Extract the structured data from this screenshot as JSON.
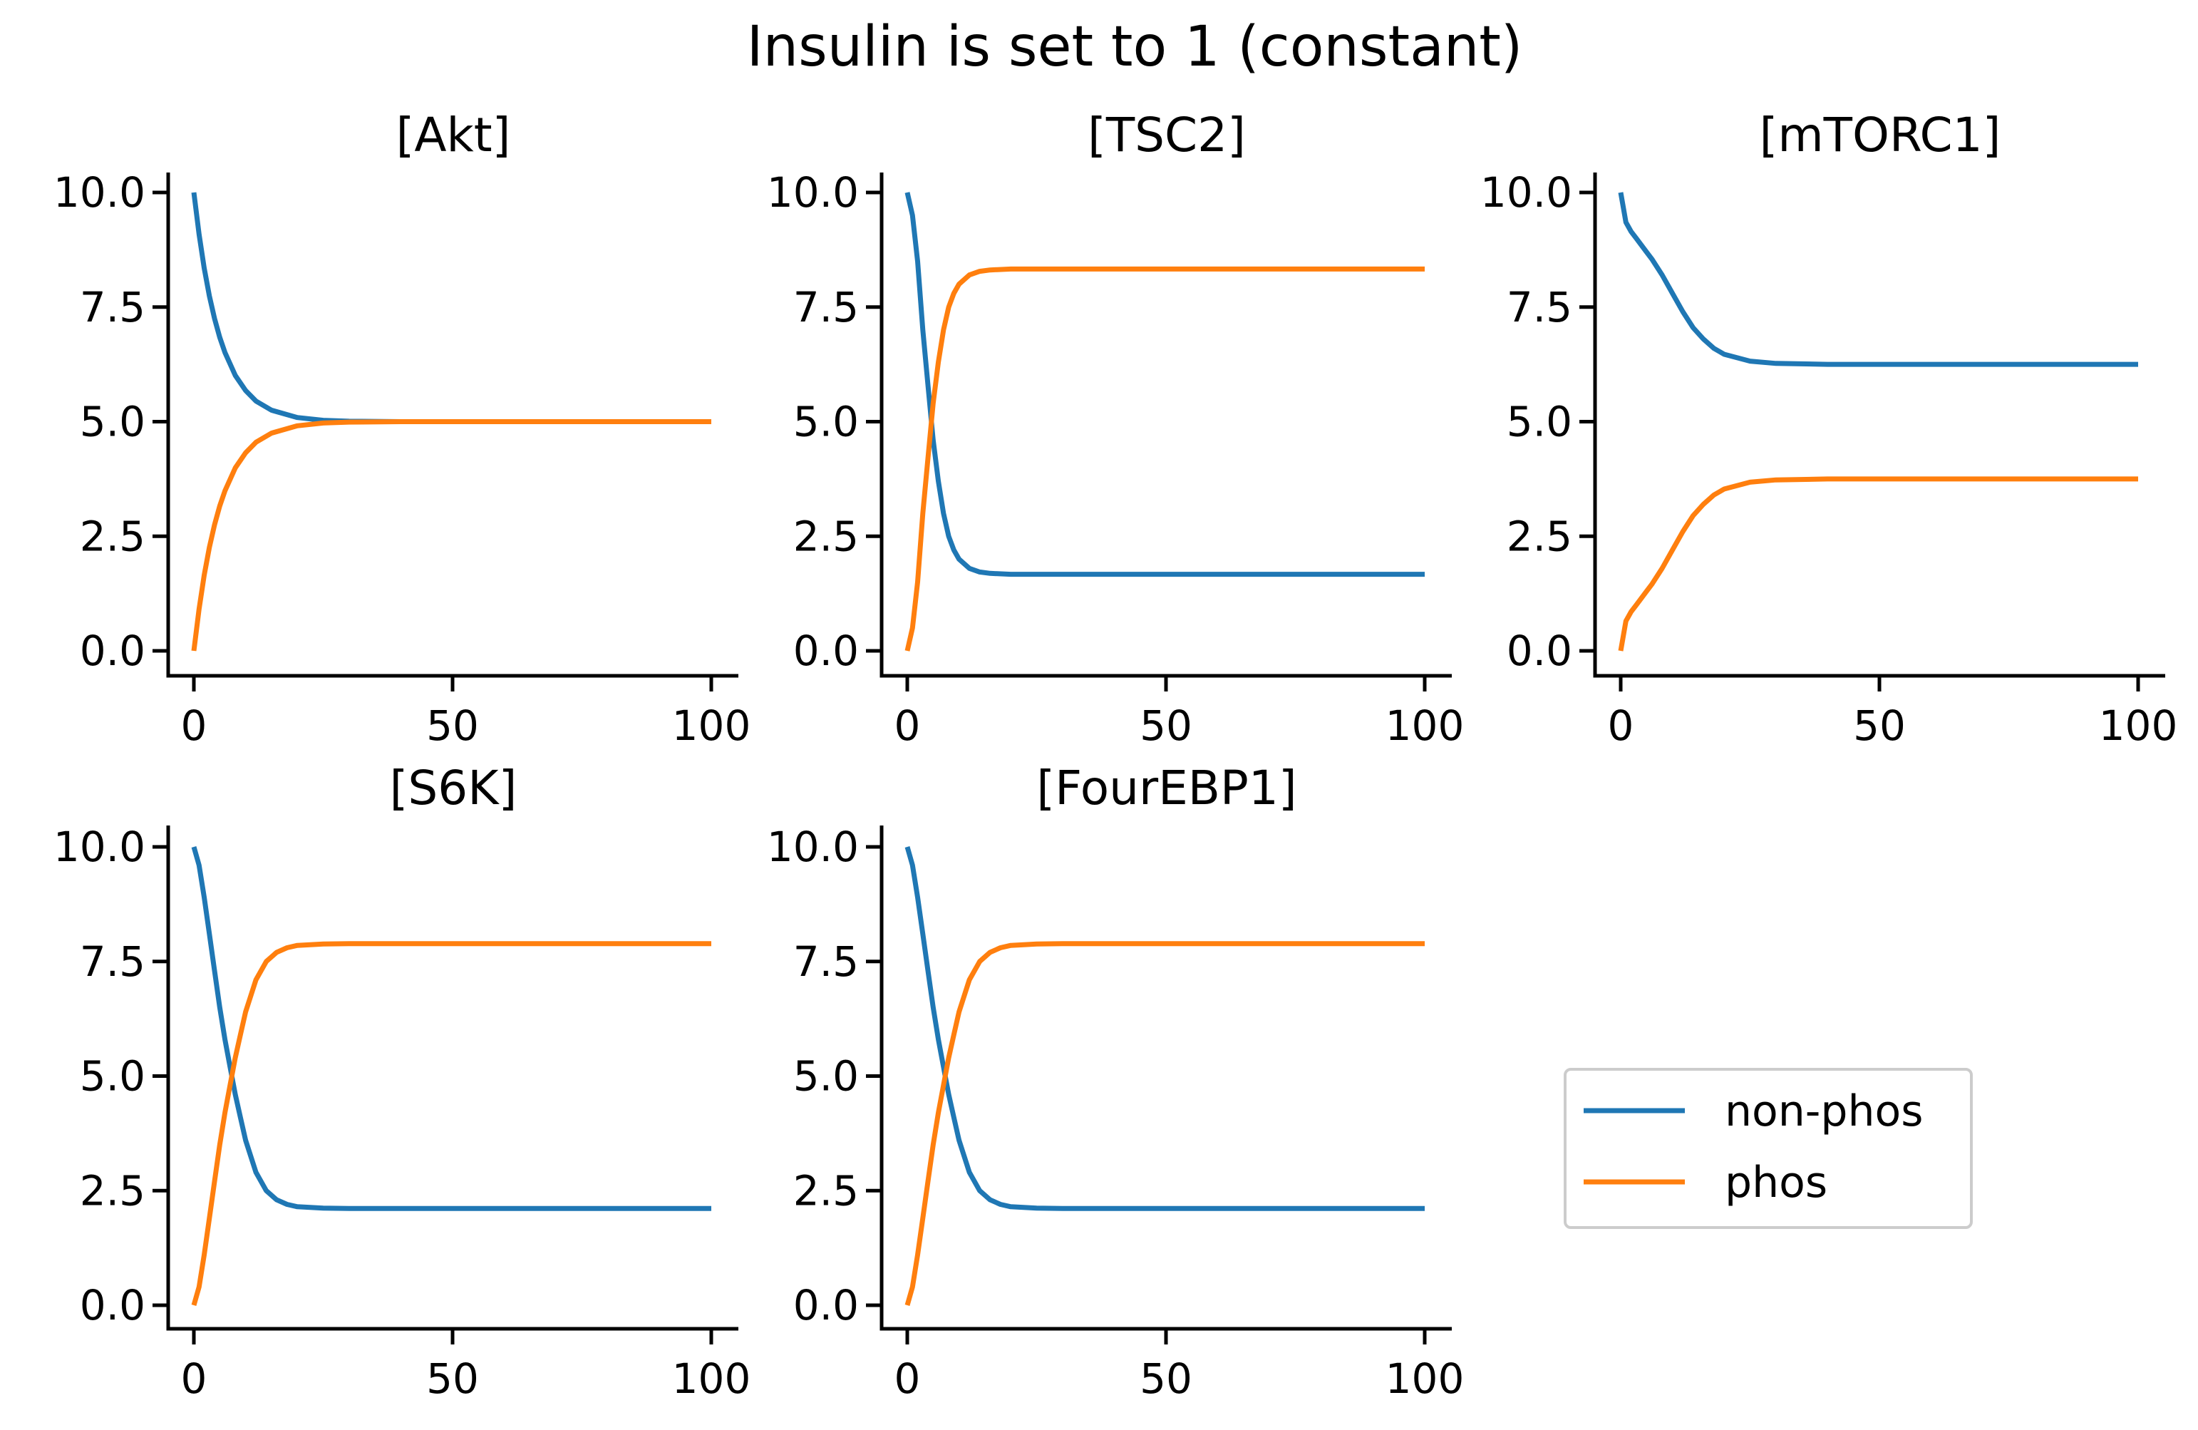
{
  "figure": {
    "title": "Insulin is set to 1 (constant)"
  },
  "legend": {
    "placement": "lower-right",
    "entries": [
      {
        "label": "non-phos",
        "color": "#1f77b4"
      },
      {
        "label": "phos",
        "color": "#ff7f0e"
      }
    ]
  },
  "chart_data": [
    {
      "type": "line",
      "title": "[Akt]",
      "xlim": [
        0,
        100
      ],
      "ylim": [
        0,
        10
      ],
      "xticks": [
        "0",
        "50",
        "100"
      ],
      "yticks": [
        "0.0",
        "2.5",
        "5.0",
        "7.5",
        "10.0"
      ],
      "x": [
        0,
        1,
        2,
        3,
        4,
        5,
        6,
        8,
        10,
        12,
        15,
        20,
        25,
        30,
        40,
        50,
        60,
        70,
        80,
        90,
        100
      ],
      "series": [
        {
          "name": "non-phos",
          "color": "#1f77b4",
          "values": [
            10.0,
            9.09,
            8.35,
            7.74,
            7.25,
            6.84,
            6.51,
            6.01,
            5.68,
            5.45,
            5.25,
            5.09,
            5.03,
            5.01,
            5.0,
            5.0,
            5.0,
            5.0,
            5.0,
            5.0,
            5.0
          ]
        },
        {
          "name": "phos",
          "color": "#ff7f0e",
          "values": [
            0.0,
            0.91,
            1.65,
            2.26,
            2.75,
            3.16,
            3.49,
            3.99,
            4.32,
            4.55,
            4.75,
            4.91,
            4.97,
            4.99,
            5.0,
            5.0,
            5.0,
            5.0,
            5.0,
            5.0,
            5.0
          ]
        }
      ]
    },
    {
      "type": "line",
      "title": "[TSC2]",
      "xlim": [
        0,
        100
      ],
      "ylim": [
        0,
        10
      ],
      "xticks": [
        "0",
        "50",
        "100"
      ],
      "yticks": [
        "0.0",
        "2.5",
        "5.0",
        "7.5",
        "10.0"
      ],
      "x": [
        0,
        1,
        2,
        3,
        4,
        5,
        6,
        7,
        8,
        9,
        10,
        12,
        14,
        16,
        20,
        25,
        30,
        40,
        50,
        60,
        70,
        80,
        90,
        100
      ],
      "series": [
        {
          "name": "non-phos",
          "color": "#1f77b4",
          "values": [
            10.0,
            9.5,
            8.5,
            7.0,
            5.8,
            4.6,
            3.7,
            3.0,
            2.5,
            2.2,
            2.0,
            1.8,
            1.72,
            1.69,
            1.67,
            1.67,
            1.67,
            1.67,
            1.67,
            1.67,
            1.67,
            1.67,
            1.67,
            1.67
          ]
        },
        {
          "name": "phos",
          "color": "#ff7f0e",
          "values": [
            0.0,
            0.5,
            1.5,
            3.0,
            4.2,
            5.4,
            6.3,
            7.0,
            7.5,
            7.8,
            8.0,
            8.2,
            8.28,
            8.31,
            8.33,
            8.33,
            8.33,
            8.33,
            8.33,
            8.33,
            8.33,
            8.33,
            8.33,
            8.33
          ]
        }
      ]
    },
    {
      "type": "line",
      "title": "[mTORC1]",
      "xlim": [
        0,
        100
      ],
      "ylim": [
        0,
        10
      ],
      "xticks": [
        "0",
        "50",
        "100"
      ],
      "yticks": [
        "0.0",
        "2.5",
        "5.0",
        "7.5",
        "10.0"
      ],
      "x": [
        0,
        1,
        2,
        3,
        4,
        5,
        6,
        8,
        10,
        12,
        14,
        16,
        18,
        20,
        25,
        30,
        40,
        50,
        60,
        70,
        80,
        90,
        100
      ],
      "series": [
        {
          "name": "non-phos",
          "color": "#1f77b4",
          "values": [
            10.0,
            9.35,
            9.15,
            9.0,
            8.85,
            8.7,
            8.55,
            8.2,
            7.8,
            7.4,
            7.05,
            6.8,
            6.6,
            6.47,
            6.32,
            6.27,
            6.25,
            6.25,
            6.25,
            6.25,
            6.25,
            6.25,
            6.25
          ]
        },
        {
          "name": "phos",
          "color": "#ff7f0e",
          "values": [
            0.0,
            0.65,
            0.85,
            1.0,
            1.15,
            1.3,
            1.45,
            1.8,
            2.2,
            2.6,
            2.95,
            3.2,
            3.4,
            3.53,
            3.68,
            3.73,
            3.75,
            3.75,
            3.75,
            3.75,
            3.75,
            3.75,
            3.75
          ]
        }
      ]
    },
    {
      "type": "line",
      "title": "[S6K]",
      "xlim": [
        0,
        100
      ],
      "ylim": [
        0,
        10
      ],
      "xticks": [
        "0",
        "50",
        "100"
      ],
      "yticks": [
        "0.0",
        "2.5",
        "5.0",
        "7.5",
        "10.0"
      ],
      "x": [
        0,
        1,
        2,
        3,
        4,
        5,
        6,
        7,
        8,
        9,
        10,
        12,
        14,
        16,
        18,
        20,
        25,
        30,
        40,
        50,
        60,
        70,
        80,
        90,
        100
      ],
      "series": [
        {
          "name": "non-phos",
          "color": "#1f77b4",
          "values": [
            10.0,
            9.6,
            8.9,
            8.1,
            7.3,
            6.5,
            5.8,
            5.2,
            4.6,
            4.1,
            3.6,
            2.9,
            2.5,
            2.3,
            2.2,
            2.15,
            2.12,
            2.11,
            2.11,
            2.11,
            2.11,
            2.11,
            2.11,
            2.11,
            2.11
          ]
        },
        {
          "name": "phos",
          "color": "#ff7f0e",
          "values": [
            0.0,
            0.4,
            1.1,
            1.9,
            2.7,
            3.5,
            4.2,
            4.8,
            5.4,
            5.9,
            6.4,
            7.1,
            7.5,
            7.7,
            7.8,
            7.85,
            7.88,
            7.89,
            7.89,
            7.89,
            7.89,
            7.89,
            7.89,
            7.89,
            7.89
          ]
        }
      ]
    },
    {
      "type": "line",
      "title": "[FourEBP1]",
      "xlim": [
        0,
        100
      ],
      "ylim": [
        0,
        10
      ],
      "xticks": [
        "0",
        "50",
        "100"
      ],
      "yticks": [
        "0.0",
        "2.5",
        "5.0",
        "7.5",
        "10.0"
      ],
      "x": [
        0,
        1,
        2,
        3,
        4,
        5,
        6,
        7,
        8,
        9,
        10,
        12,
        14,
        16,
        18,
        20,
        25,
        30,
        40,
        50,
        60,
        70,
        80,
        90,
        100
      ],
      "series": [
        {
          "name": "non-phos",
          "color": "#1f77b4",
          "values": [
            10.0,
            9.6,
            8.9,
            8.1,
            7.3,
            6.5,
            5.8,
            5.2,
            4.6,
            4.1,
            3.6,
            2.9,
            2.5,
            2.3,
            2.2,
            2.15,
            2.12,
            2.11,
            2.11,
            2.11,
            2.11,
            2.11,
            2.11,
            2.11,
            2.11
          ]
        },
        {
          "name": "phos",
          "color": "#ff7f0e",
          "values": [
            0.0,
            0.4,
            1.1,
            1.9,
            2.7,
            3.5,
            4.2,
            4.8,
            5.4,
            5.9,
            6.4,
            7.1,
            7.5,
            7.7,
            7.8,
            7.85,
            7.88,
            7.89,
            7.89,
            7.89,
            7.89,
            7.89,
            7.89,
            7.89,
            7.89
          ]
        }
      ]
    }
  ]
}
